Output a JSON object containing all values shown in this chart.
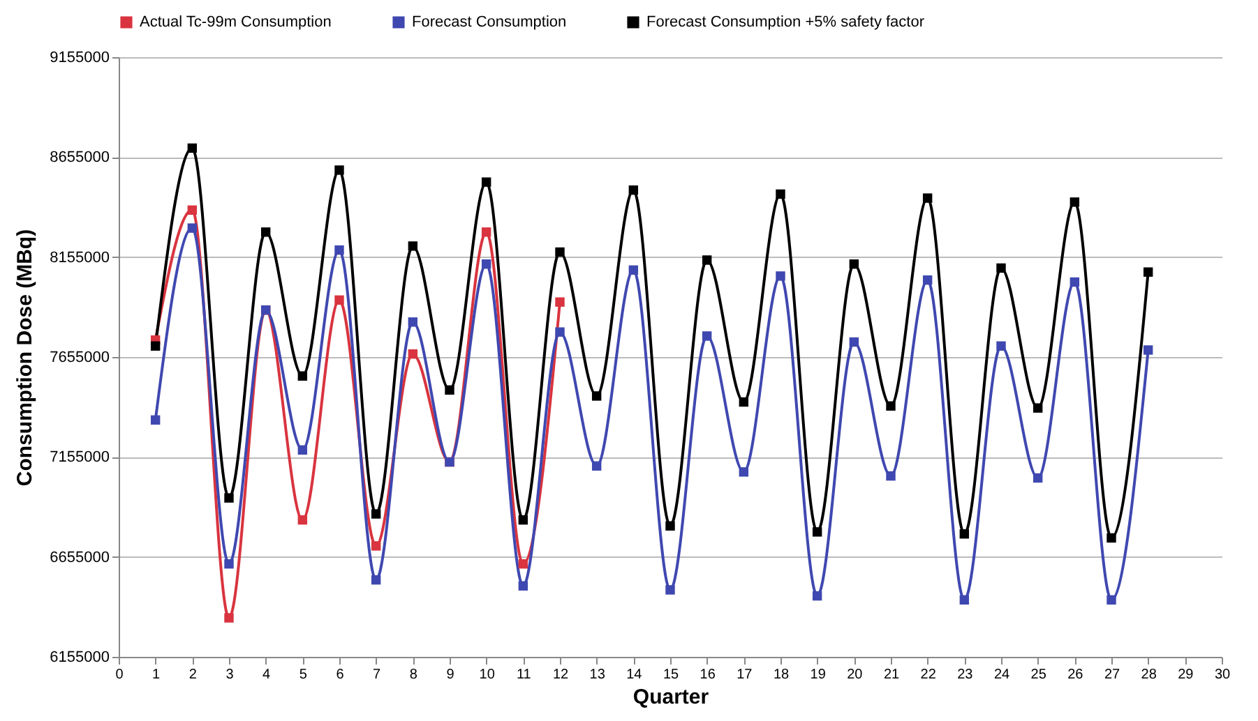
{
  "chart_data": {
    "type": "line",
    "xlabel": "Quarter",
    "ylabel": "Consumption Dose (MBq)",
    "x": [
      1,
      2,
      3,
      4,
      5,
      6,
      7,
      8,
      9,
      10,
      11,
      12,
      13,
      14,
      15,
      16,
      17,
      18,
      19,
      20,
      21,
      22,
      23,
      24,
      25,
      26,
      27,
      28
    ],
    "xlim": [
      0,
      30
    ],
    "xticks": [
      0,
      1,
      2,
      3,
      4,
      5,
      6,
      7,
      8,
      9,
      10,
      11,
      12,
      13,
      14,
      15,
      16,
      17,
      18,
      19,
      20,
      21,
      22,
      23,
      24,
      25,
      26,
      27,
      28,
      29,
      30
    ],
    "ylim": [
      6155000,
      9155000
    ],
    "yticks": [
      6155000,
      6655000,
      7155000,
      7655000,
      8155000,
      8655000,
      9155000
    ],
    "grid": "y",
    "legend": "top",
    "marker": "square",
    "line_style": "solid",
    "series": [
      {
        "name": "Actual Tc-99m Consumption",
        "color": "#d9343f",
        "x": [
          1,
          2,
          3,
          4,
          5,
          6,
          7,
          8,
          9,
          10,
          11,
          12
        ],
        "values": [
          7740000,
          8390000,
          6350000,
          7890000,
          6840000,
          7940000,
          6710000,
          7670000,
          7130000,
          8280000,
          6620000,
          7930000
        ]
      },
      {
        "name": "Forecast Consumption",
        "color": "#3f48b0",
        "values": [
          7340000,
          8300000,
          6620000,
          7890000,
          7190000,
          8190000,
          6540000,
          7830000,
          7130000,
          8120000,
          6510000,
          7780000,
          7110000,
          8090000,
          6490000,
          7760000,
          7080000,
          8060000,
          6460000,
          7730000,
          7060000,
          8040000,
          6440000,
          7710000,
          7050000,
          8030000,
          6440000,
          7690000
        ]
      },
      {
        "name": "Forecast Consumption +5% safety factor",
        "color": "#000000",
        "values": [
          7710000,
          8700000,
          6950000,
          8280000,
          7560000,
          8590000,
          6870000,
          8210000,
          7490000,
          8530000,
          6840000,
          8180000,
          7460000,
          8490000,
          6810000,
          8140000,
          7430000,
          8470000,
          6780000,
          8120000,
          7410000,
          8450000,
          6770000,
          8100000,
          7400000,
          8430000,
          6750000,
          8080000
        ]
      }
    ]
  }
}
